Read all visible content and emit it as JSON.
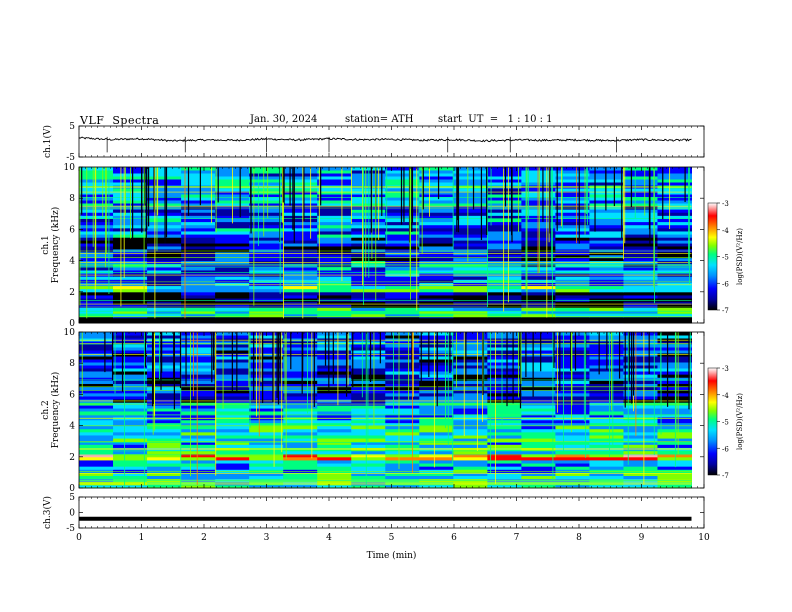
{
  "header": {
    "title": "VLF  Spectra",
    "date": "Jan. 30, 2024",
    "station": "station= ATH",
    "start": "start  UT  =   1 : 10 : 1"
  },
  "chart_data": [
    {
      "type": "line",
      "panel": "ch1-waveform",
      "ylabel": "ch.1(V)",
      "ylim": [
        -5,
        5
      ],
      "yticks": [
        "5",
        "-5"
      ],
      "x": [
        0.0,
        0.5,
        1.0,
        1.5,
        2.0,
        2.5,
        3.0,
        3.5,
        4.0,
        4.5,
        5.0,
        5.5,
        6.0,
        6.5,
        7.0,
        7.5,
        8.0,
        8.5,
        9.0,
        9.5,
        9.8
      ],
      "values": [
        1.2,
        0.6,
        0.9,
        0.2,
        0.5,
        0.4,
        0.8,
        0.5,
        0.9,
        0.6,
        0.7,
        0.4,
        0.6,
        0.2,
        0.5,
        0.4,
        0.5,
        0.3,
        0.6,
        0.4,
        0.5
      ],
      "color": "#000000"
    },
    {
      "type": "heatmap",
      "panel": "ch1-spectrogram",
      "ylabel": "ch.1\nFrequency (kHz)",
      "ylim": [
        0,
        10
      ],
      "yticks": [
        "0",
        "2",
        "4",
        "6",
        "8",
        "10"
      ],
      "xlim": [
        0,
        10
      ],
      "zlabel": "log(PSD)(V²/Hz)",
      "zlim": [
        -7,
        -3
      ],
      "zticks": [
        "-3",
        "-4",
        "-5",
        "-6",
        "-7"
      ],
      "bands_khz": [
        {
          "range": [
            0,
            0.4
          ],
          "level": -7
        },
        {
          "range": [
            0.4,
            1.0
          ],
          "level": -5.2
        },
        {
          "range": [
            1.0,
            2.0
          ],
          "level": -6.6
        },
        {
          "range": [
            2.0,
            2.4
          ],
          "level": -5.0
        },
        {
          "range": [
            2.4,
            4.0
          ],
          "level": -5.8
        },
        {
          "range": [
            4.0,
            5.5
          ],
          "level": -6.3
        },
        {
          "range": [
            5.5,
            7.5
          ],
          "level": -5.8
        },
        {
          "range": [
            7.5,
            10
          ],
          "level": -5.6
        }
      ]
    },
    {
      "type": "heatmap",
      "panel": "ch2-spectrogram",
      "ylabel": "ch.2\nFrequency (kHz)",
      "ylim": [
        0,
        10
      ],
      "yticks": [
        "0",
        "2",
        "4",
        "6",
        "8",
        "10"
      ],
      "xlim": [
        0,
        10
      ],
      "zlabel": "log(PSD)(V²/Hz)",
      "zlim": [
        -7,
        -3
      ],
      "zticks": [
        "-3",
        "-4",
        "-5",
        "-6",
        "-7"
      ],
      "bands_khz": [
        {
          "range": [
            0,
            1.0
          ],
          "level": -5.2
        },
        {
          "range": [
            1.0,
            1.8
          ],
          "level": -5.5
        },
        {
          "range": [
            1.8,
            2.2
          ],
          "level": -4.0
        },
        {
          "range": [
            2.2,
            4.0
          ],
          "level": -5.3
        },
        {
          "range": [
            4.0,
            5.5
          ],
          "level": -5.6
        },
        {
          "range": [
            5.5,
            7.5
          ],
          "level": -6.2
        },
        {
          "range": [
            7.5,
            10
          ],
          "level": -6.0
        }
      ]
    },
    {
      "type": "line",
      "panel": "ch3-waveform",
      "ylabel": "ch.3(V)",
      "ylim": [
        -5,
        5
      ],
      "yticks": [
        "5",
        "0",
        "-5"
      ],
      "x": [
        0,
        9.8
      ],
      "values": [
        -2,
        -2
      ],
      "color": "#000000"
    }
  ],
  "xaxis": {
    "label": "Time  (min)",
    "xlim": [
      0,
      10
    ],
    "ticks": [
      "0",
      "1",
      "2",
      "3",
      "4",
      "5",
      "6",
      "7",
      "8",
      "9",
      "10"
    ]
  },
  "colors": {
    "scale": [
      "#000000",
      "#0000a0",
      "#0000ff",
      "#0090ff",
      "#00e0ff",
      "#00ff80",
      "#80ff00",
      "#ffff00",
      "#ff8000",
      "#ff0000",
      "#ffb0b0",
      "#ffffff"
    ],
    "line": "#000000",
    "axes": "#000000"
  }
}
